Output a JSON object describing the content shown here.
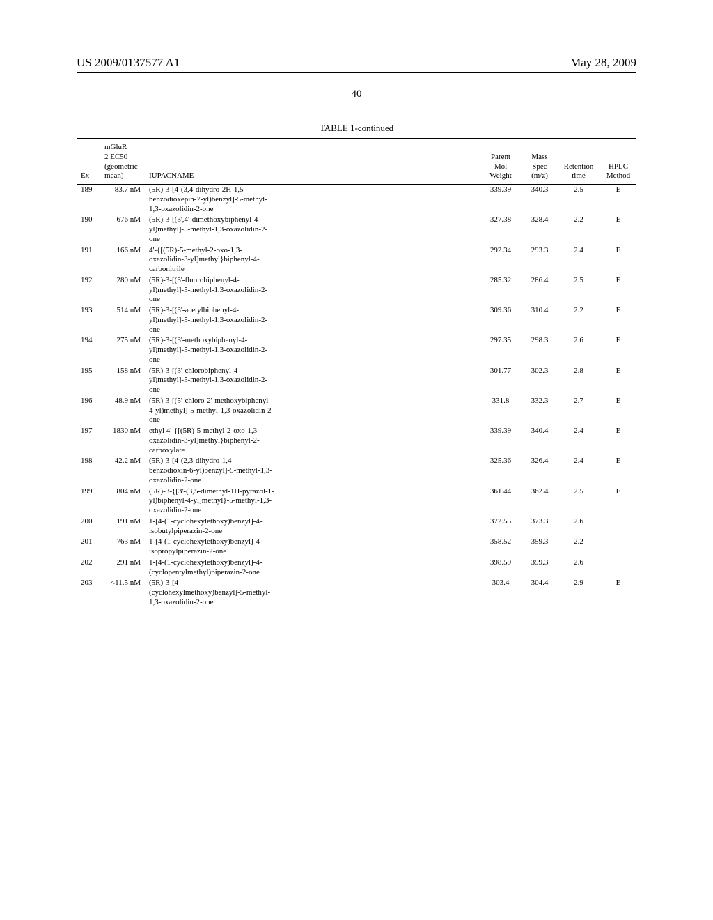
{
  "header": {
    "left": "US 2009/0137577 A1",
    "right": "May 28, 2009"
  },
  "page_number": "40",
  "table": {
    "caption": "TABLE 1-continued",
    "columns": {
      "ex": "Ex",
      "ec50_line1": "mGluR",
      "ec50_line2": "2 EC50",
      "ec50_line3": "(geometric",
      "ec50_line4": "mean)",
      "iupac": "IUPACNAME",
      "mw_line1": "Parent",
      "mw_line2": "Mol",
      "mw_line3": "Weight",
      "ms_line1": "Mass",
      "ms_line2": "Spec",
      "ms_line3": "(m/z)",
      "rt_line1": "Retention",
      "rt_line2": "time",
      "meth_line1": "HPLC",
      "meth_line2": "Method"
    },
    "rows": [
      {
        "ex": "189",
        "ec50": "83.7 nM",
        "iupac": "(5R)-3-[4-(3,4-dihydro-2H-1,5-benzodioxepin-7-yl)benzyl]-5-methyl-1,3-oxazolidin-2-one",
        "mw": "339.39",
        "ms": "340.3",
        "rt": "2.5",
        "method": "E"
      },
      {
        "ex": "190",
        "ec50": "676 nM",
        "iupac": "(5R)-3-[(3',4'-dimethoxybiphenyl-4-yl)methyl]-5-methyl-1,3-oxazolidin-2-one",
        "mw": "327.38",
        "ms": "328.4",
        "rt": "2.2",
        "method": "E"
      },
      {
        "ex": "191",
        "ec50": "166 nM",
        "iupac": "4'-{[(5R)-5-methyl-2-oxo-1,3-oxazolidin-3-yl]methyl}biphenyl-4-carbonitrile",
        "mw": "292.34",
        "ms": "293.3",
        "rt": "2.4",
        "method": "E"
      },
      {
        "ex": "192",
        "ec50": "280 nM",
        "iupac": "(5R)-3-[(3'-fluorobiphenyl-4-yl)methyl]-5-methyl-1,3-oxazolidin-2-one",
        "mw": "285.32",
        "ms": "286.4",
        "rt": "2.5",
        "method": "E"
      },
      {
        "ex": "193",
        "ec50": "514 nM",
        "iupac": "(5R)-3-[(3'-acetylbiphenyl-4-yl)methyl]-5-methyl-1,3-oxazolidin-2-one",
        "mw": "309.36",
        "ms": "310.4",
        "rt": "2.2",
        "method": "E"
      },
      {
        "ex": "194",
        "ec50": "275 nM",
        "iupac": "(5R)-3-[(3'-methoxybiphenyl-4-yl)methyl]-5-methyl-1,3-oxazolidin-2-one",
        "mw": "297.35",
        "ms": "298.3",
        "rt": "2.6",
        "method": "E"
      },
      {
        "ex": "195",
        "ec50": "158 nM",
        "iupac": "(5R)-3-[(3'-chlorobiphenyl-4-yl)methyl]-5-methyl-1,3-oxazolidin-2-one",
        "mw": "301.77",
        "ms": "302.3",
        "rt": "2.8",
        "method": "E"
      },
      {
        "ex": "196",
        "ec50": "48.9 nM",
        "iupac": "(5R)-3-[(5'-chloro-2'-methoxybiphenyl-4-yl)methyl]-5-methyl-1,3-oxazolidin-2-one",
        "mw": "331.8",
        "ms": "332.3",
        "rt": "2.7",
        "method": "E"
      },
      {
        "ex": "197",
        "ec50": "1830 nM",
        "iupac": "ethyl 4'-{[(5R)-5-methyl-2-oxo-1,3-oxazolidin-3-yl]methyl}biphenyl-2-carboxylate",
        "mw": "339.39",
        "ms": "340.4",
        "rt": "2.4",
        "method": "E"
      },
      {
        "ex": "198",
        "ec50": "42.2 nM",
        "iupac": "(5R)-3-[4-(2,3-dihydro-1,4-benzodioxin-6-yl)benzyl]-5-methyl-1,3-oxazolidin-2-one",
        "mw": "325.36",
        "ms": "326.4",
        "rt": "2.4",
        "method": "E"
      },
      {
        "ex": "199",
        "ec50": "804 nM",
        "iupac": "(5R)-3-{[3'-(3,5-dimethyl-1H-pyrazol-1-yl)biphenyl-4-yl]methyl}-5-methyl-1,3-oxazolidin-2-one",
        "mw": "361.44",
        "ms": "362.4",
        "rt": "2.5",
        "method": "E"
      },
      {
        "ex": "200",
        "ec50": "191 nM",
        "iupac": "1-[4-(1-cyclohexylethoxy)benzyl]-4-isobutylpiperazin-2-one",
        "mw": "372.55",
        "ms": "373.3",
        "rt": "2.6",
        "method": ""
      },
      {
        "ex": "201",
        "ec50": "763 nM",
        "iupac": "1-[4-(1-cyclohexylethoxy)benzyl]-4-isopropylpiperazin-2-one",
        "mw": "358.52",
        "ms": "359.3",
        "rt": "2.2",
        "method": ""
      },
      {
        "ex": "202",
        "ec50": "291 nM",
        "iupac": "1-[4-(1-cyclohexylethoxy)benzyl]-4-(cyclopentylmethyl)piperazin-2-one",
        "mw": "398.59",
        "ms": "399.3",
        "rt": "2.6",
        "method": ""
      },
      {
        "ex": "203",
        "ec50": "<11.5 nM",
        "iupac": "(5R)-3-[4-(cyclohexylmethoxy)benzyl]-5-methyl-1,3-oxazolidin-2-one",
        "mw": "303.4",
        "ms": "304.4",
        "rt": "2.9",
        "method": "E"
      }
    ]
  }
}
